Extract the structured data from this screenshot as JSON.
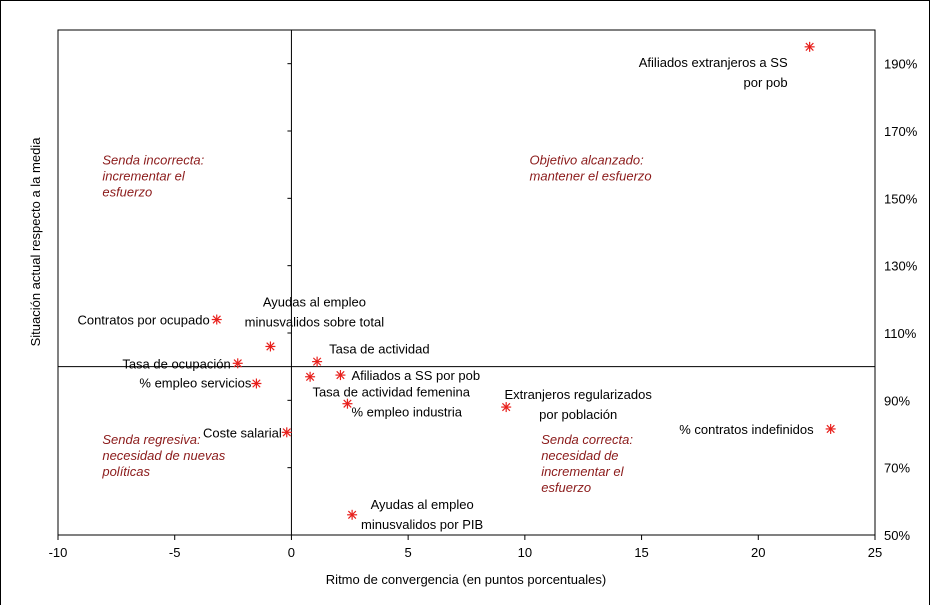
{
  "chart_data": {
    "type": "scatter",
    "xlabel": "Ritmo de convergencia (en puntos porcentuales)",
    "ylabel": "Situación actual respecto a la media",
    "xlim": [
      -10,
      25
    ],
    "ylim": [
      50,
      200
    ],
    "x_ticks": [
      -10,
      -5,
      0,
      5,
      10,
      15,
      20,
      25
    ],
    "x_tick_labels": [
      "-10",
      "-5",
      "0",
      "5",
      "10",
      "15",
      "20",
      "25"
    ],
    "y_ticks": [
      50,
      70,
      90,
      110,
      130,
      150,
      170,
      190
    ],
    "y_tick_labels": [
      "50%",
      "70%",
      "90%",
      "110%",
      "130%",
      "150%",
      "170%",
      "190%"
    ],
    "grid": false,
    "marker_color": "#e8201c",
    "points": [
      {
        "x": 22.2,
        "y": 195,
        "label": [
          "Afiliados extranjeros a SS",
          "por pob"
        ]
      },
      {
        "x": -3.2,
        "y": 114,
        "label": [
          "Contratos por ocupado"
        ]
      },
      {
        "x": -0.9,
        "y": 106,
        "label": [
          "Ayudas al empleo",
          "minusvalidos sobre total"
        ]
      },
      {
        "x": -2.3,
        "y": 101,
        "label": [
          "Tasa de ocupación"
        ]
      },
      {
        "x": 1.1,
        "y": 101.5,
        "label": [
          "Tasa de actividad"
        ]
      },
      {
        "x": 0.8,
        "y": 97,
        "label": []
      },
      {
        "x": 2.1,
        "y": 97.5,
        "label": [
          "Afiliados a SS por pob"
        ]
      },
      {
        "x": -1.5,
        "y": 95,
        "label": [
          "% empleo servicios"
        ]
      },
      {
        "x": 2.4,
        "y": 89,
        "label": [
          "Tasa de actividad femenina",
          "% empleo industria"
        ]
      },
      {
        "x": 9.2,
        "y": 88,
        "label": [
          "Extranjeros regularizados",
          "por población"
        ]
      },
      {
        "x": 23.1,
        "y": 81.5,
        "label": [
          "% contratos indefinidos"
        ]
      },
      {
        "x": -0.2,
        "y": 80.5,
        "label": [
          "Coste salarial"
        ]
      },
      {
        "x": 2.6,
        "y": 56,
        "label": [
          "Ayudas al empleo",
          "minusvalidos por PIB"
        ]
      }
    ],
    "annotations": [
      {
        "lines": [
          "Senda incorrecta:",
          "incrementar el",
          "esfuerzo"
        ],
        "color": "#8b1a1a"
      },
      {
        "lines": [
          "Objetivo alcanzado:",
          "mantener el esfuerzo"
        ],
        "color": "#8b1a1a"
      },
      {
        "lines": [
          "Senda regresiva:",
          "necesidad de nuevas",
          "políticas"
        ],
        "color": "#8b1a1a"
      },
      {
        "lines": [
          "Senda correcta:",
          "necesidad de",
          "incrementar el",
          "esfuerzo"
        ],
        "color": "#8b1a1a"
      }
    ]
  }
}
